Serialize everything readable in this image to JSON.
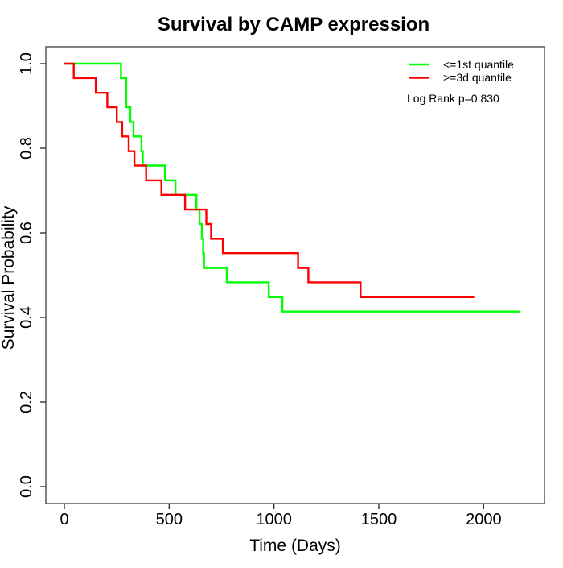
{
  "figure_title": "Survival by CAMP expression",
  "chart_data": {
    "type": "line",
    "subtype": "kaplan-meier-step",
    "title": "Survival by CAMP expression",
    "xlabel": "Time (Days)",
    "ylabel": "Survival Probability",
    "xlim": [
      0,
      2200
    ],
    "ylim": [
      0.0,
      1.0
    ],
    "grid": "off",
    "x_ticks": [
      0,
      500,
      1000,
      1500,
      2000
    ],
    "y_ticks": [
      "0.0",
      "0.2",
      "0.4",
      "0.6",
      "0.8",
      "1.0"
    ],
    "annotation": "Log Rank p=0.830",
    "legend": {
      "position": "top-right",
      "entries": [
        {
          "label": "<=1st quantile",
          "color": "#00ff00"
        },
        {
          "label": ">=3d quantile",
          "color": "#ff0000"
        }
      ]
    },
    "series": [
      {
        "name": "<=1st quantile",
        "color": "#00ff00",
        "start": [
          0,
          1.0
        ],
        "steps": [
          [
            270,
            0.966
          ],
          [
            295,
            0.897
          ],
          [
            315,
            0.862
          ],
          [
            330,
            0.828
          ],
          [
            368,
            0.793
          ],
          [
            374,
            0.759
          ],
          [
            480,
            0.724
          ],
          [
            530,
            0.69
          ],
          [
            630,
            0.655
          ],
          [
            645,
            0.621
          ],
          [
            656,
            0.586
          ],
          [
            662,
            0.552
          ],
          [
            666,
            0.517
          ],
          [
            775,
            0.483
          ],
          [
            975,
            0.448
          ],
          [
            1040,
            0.414
          ]
        ],
        "end_time": 2175,
        "final_value": 0.414
      },
      {
        "name": ">=3d quantile",
        "color": "#ff0000",
        "start": [
          0,
          1.0
        ],
        "steps": [
          [
            45,
            0.966
          ],
          [
            150,
            0.931
          ],
          [
            205,
            0.897
          ],
          [
            250,
            0.862
          ],
          [
            276,
            0.828
          ],
          [
            307,
            0.793
          ],
          [
            334,
            0.759
          ],
          [
            390,
            0.724
          ],
          [
            463,
            0.69
          ],
          [
            576,
            0.655
          ],
          [
            677,
            0.621
          ],
          [
            700,
            0.586
          ],
          [
            756,
            0.552
          ],
          [
            1115,
            0.517
          ],
          [
            1164,
            0.483
          ],
          [
            1413,
            0.448
          ]
        ],
        "end_time": 1955,
        "final_value": 0.448
      }
    ]
  }
}
